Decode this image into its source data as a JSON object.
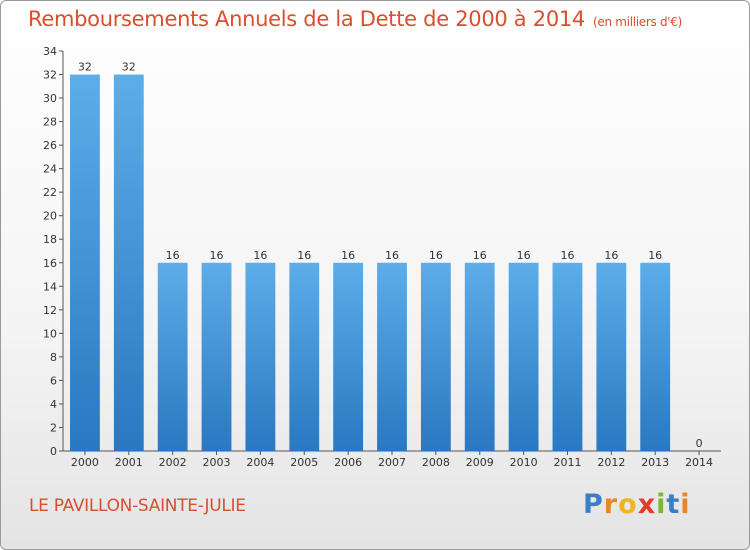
{
  "header": {
    "title": "Remboursements Annuels de la Dette de 2000 à 2014",
    "unit": "(en milliers d'€)"
  },
  "footer": {
    "commune": "LE PAVILLON-SAINTE-JULIE",
    "brand": "Proxiti"
  },
  "colors": {
    "title": "#d84f2e",
    "bar_top": "#5dade9",
    "bar_bottom": "#2978c1",
    "axis": "#555555"
  },
  "chart_data": {
    "type": "bar",
    "categories": [
      "2000",
      "2001",
      "2002",
      "2003",
      "2004",
      "2005",
      "2006",
      "2007",
      "2008",
      "2009",
      "2010",
      "2011",
      "2012",
      "2013",
      "2014"
    ],
    "values": [
      32,
      32,
      16,
      16,
      16,
      16,
      16,
      16,
      16,
      16,
      16,
      16,
      16,
      16,
      0
    ],
    "data_labels": [
      "32",
      "32",
      "16",
      "16",
      "16",
      "16",
      "16",
      "16",
      "16",
      "16",
      "16",
      "16",
      "16",
      "16",
      "0"
    ],
    "ylim": [
      0,
      34
    ],
    "yticks": [
      0,
      2,
      4,
      6,
      8,
      10,
      12,
      14,
      16,
      18,
      20,
      22,
      24,
      26,
      28,
      30,
      32,
      34
    ],
    "grid": false
  }
}
